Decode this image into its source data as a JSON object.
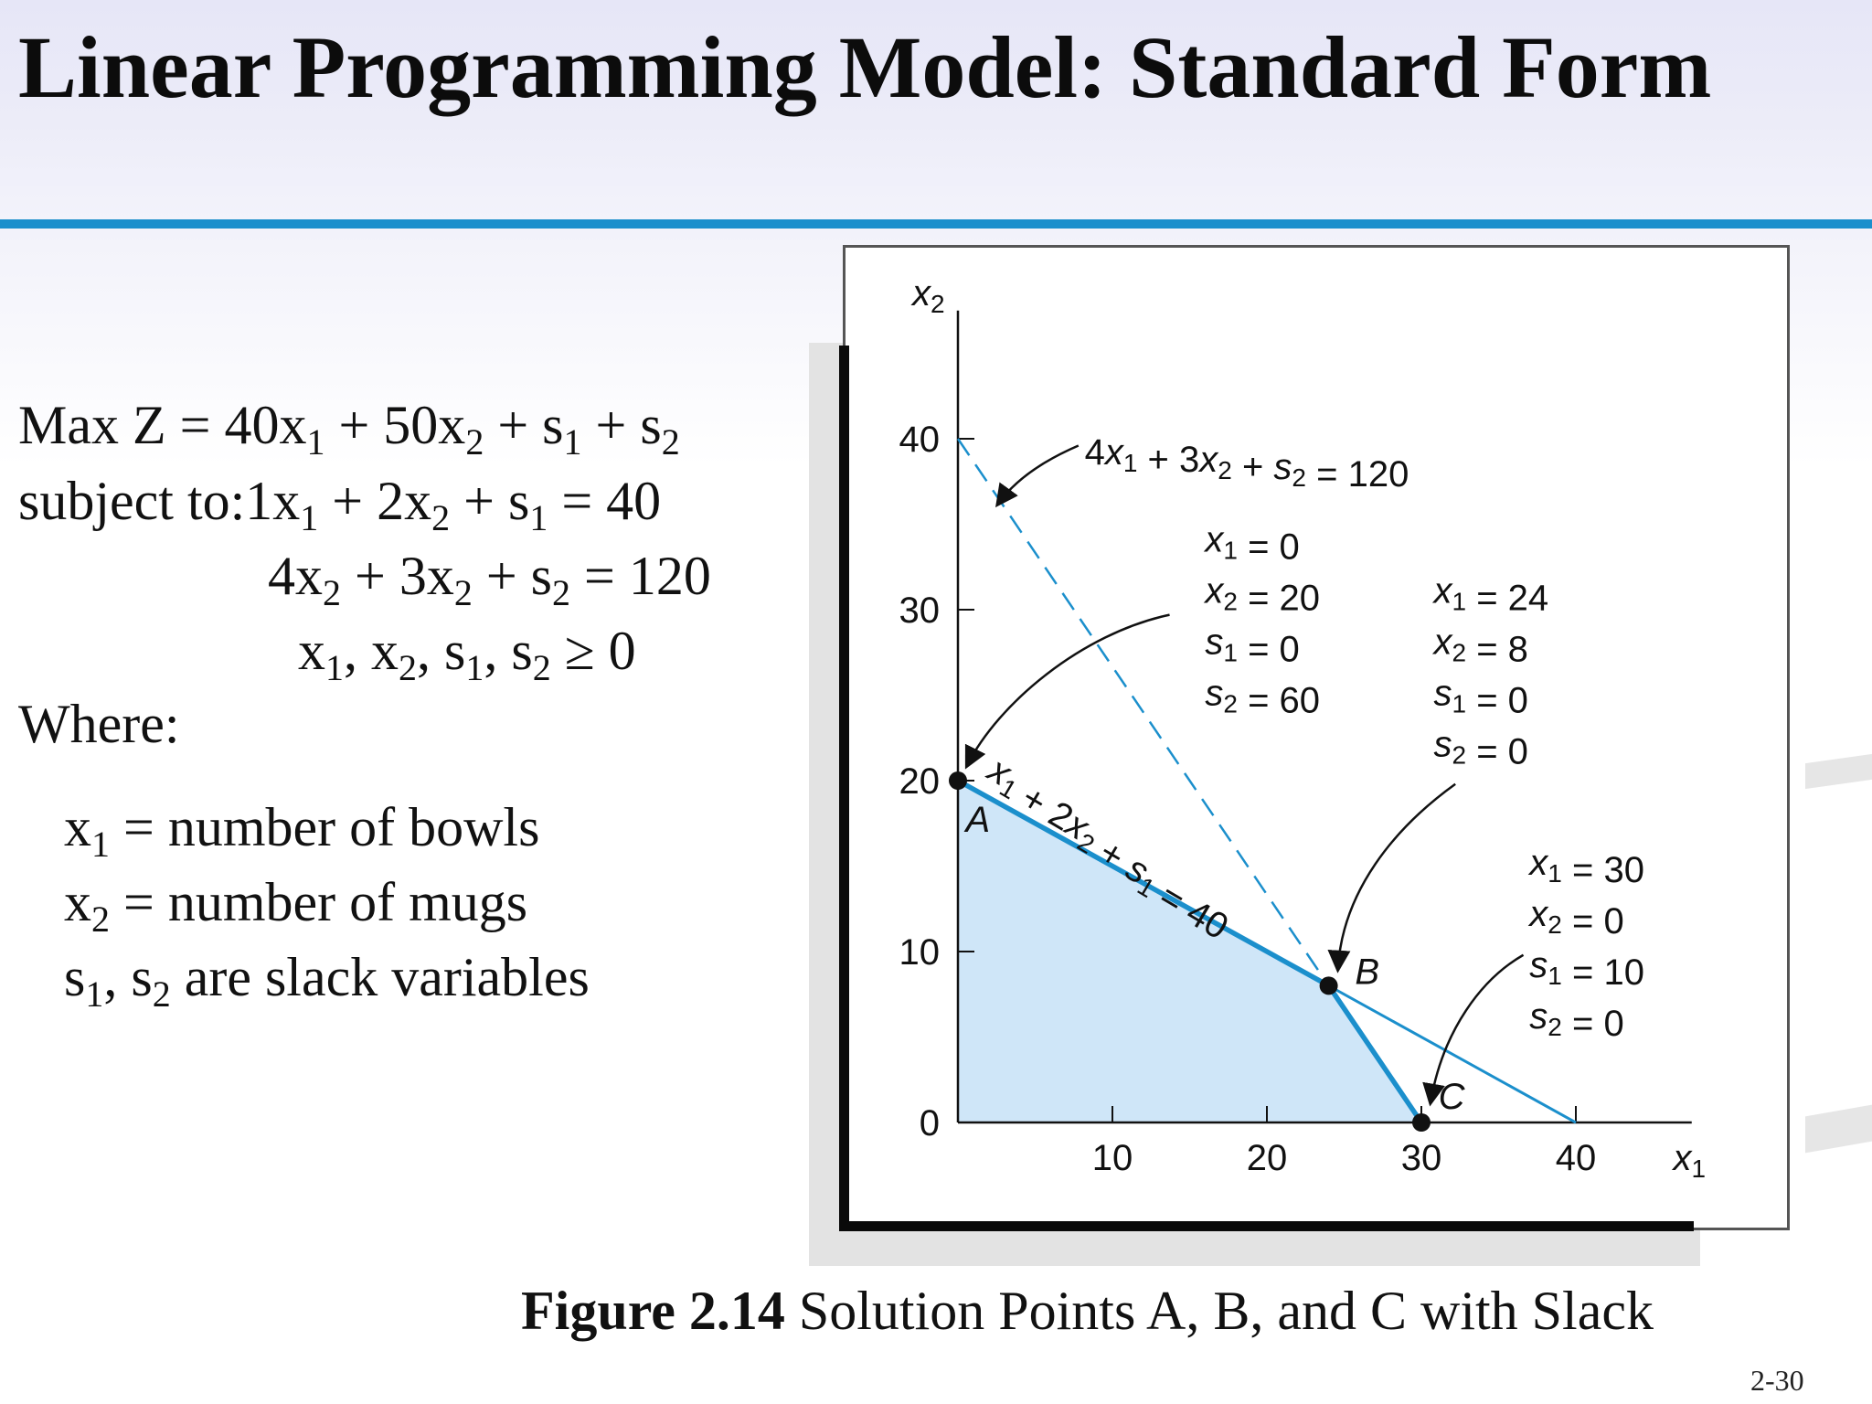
{
  "slide": {
    "title": "Linear Programming Model: Standard Form",
    "page_number": "2-30",
    "accent_color": "#1b8fcc"
  },
  "model": {
    "objective": {
      "prefix": "Max Z = 40x",
      "rest": [
        " + 50x",
        " + s",
        " + s"
      ]
    },
    "constraint_lead": "subject to:",
    "where_label": "Where:",
    "definitions": [
      " = number of bowls",
      " = number of mugs",
      " are slack variables"
    ]
  },
  "figure": {
    "caption_number": "Figure 2.14",
    "caption_text": " Solution Points A, B, and C with Slack",
    "line_label_1": "4x1 + 3x2 + s2 = 120",
    "line_label_2": "x1 + 2x2 + s1 = 40",
    "point_labels": [
      "A",
      "B",
      "C"
    ],
    "point_info": [
      [
        "x1 = 0",
        "x2 = 20",
        "s1 = 0",
        "s2 = 60"
      ],
      [
        "x1 = 24",
        "x2 = 8",
        "s1 = 0",
        "s2 = 0"
      ],
      [
        "x1 = 30",
        "x2 = 0",
        "s1 = 10",
        "s2 = 0"
      ]
    ]
  },
  "chart_data": {
    "type": "line",
    "xlabel": "x1",
    "ylabel": "x2",
    "xlim": [
      0,
      47
    ],
    "ylim": [
      0,
      47
    ],
    "x_ticks": [
      10,
      20,
      30,
      40
    ],
    "y_ticks": [
      0,
      10,
      20,
      30,
      40
    ],
    "lines": [
      {
        "equation": "x1 + 2x2 + s1 = 40",
        "style": "solid",
        "points": [
          [
            0,
            20
          ],
          [
            40,
            0
          ]
        ]
      },
      {
        "equation": "4x1 + 3x2 + s2 = 120",
        "style": "dashed",
        "points": [
          [
            0,
            40
          ],
          [
            30,
            0
          ]
        ]
      }
    ],
    "feasible_region": [
      [
        0,
        0
      ],
      [
        0,
        20
      ],
      [
        24,
        8
      ],
      [
        30,
        0
      ]
    ],
    "solution_points": [
      {
        "label": "A",
        "x1": 0,
        "x2": 20,
        "s1": 0,
        "s2": 60
      },
      {
        "label": "B",
        "x1": 24,
        "x2": 8,
        "s1": 0,
        "s2": 0
      },
      {
        "label": "C",
        "x1": 30,
        "x2": 0,
        "s1": 10,
        "s2": 0
      }
    ],
    "colors": {
      "region": "#cfe6f8",
      "constraint_line": "#1b8fcc",
      "points": "#111111"
    }
  }
}
